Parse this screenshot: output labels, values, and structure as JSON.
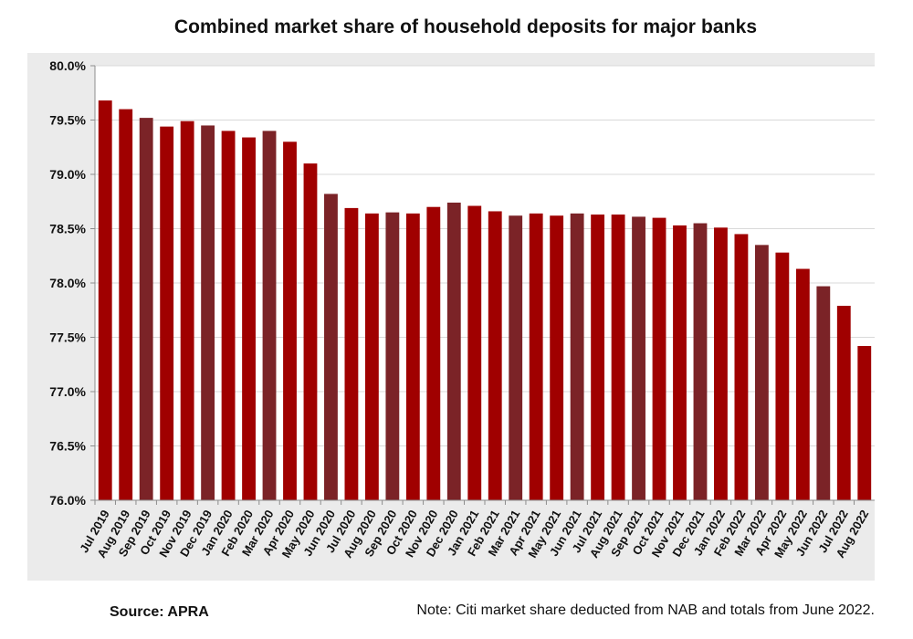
{
  "chart_data": {
    "type": "bar",
    "title": "Combined market share of household deposits for major banks",
    "xlabel": "",
    "ylabel": "",
    "ylim": [
      76.0,
      80.0
    ],
    "y_ticks": [
      "80.0%",
      "79.5%",
      "79.0%",
      "78.5%",
      "78.0%",
      "77.5%",
      "77.0%",
      "76.5%",
      "76.0%"
    ],
    "y_tick_values": [
      80.0,
      79.5,
      79.0,
      78.5,
      78.0,
      77.5,
      77.0,
      76.5,
      76.0
    ],
    "grid": "horizontal",
    "categories": [
      "Jul 2019",
      "Aug 2019",
      "Sep 2019",
      "Oct 2019",
      "Nov 2019",
      "Dec 2019",
      "Jan 2020",
      "Feb 2020",
      "Mar 2020",
      "Apr 2020",
      "May 2020",
      "Jun 2020",
      "Jul 2020",
      "Aug 2020",
      "Sep 2020",
      "Oct 2020",
      "Nov 2020",
      "Dec 2020",
      "Jan 2021",
      "Feb 2021",
      "Mar 2021",
      "Apr 2021",
      "May 2021",
      "Jun 2021",
      "Jul 2021",
      "Aug 2021",
      "Sep 2021",
      "Oct 2021",
      "Nov 2021",
      "Dec 2021",
      "Jan 2022",
      "Feb 2022",
      "Mar 2022",
      "Apr 2022",
      "May 2022",
      "Jun 2022",
      "Jul 2022",
      "Aug 2022"
    ],
    "values": [
      79.68,
      79.6,
      79.52,
      79.44,
      79.49,
      79.45,
      79.4,
      79.34,
      79.4,
      79.3,
      79.1,
      78.82,
      78.69,
      78.64,
      78.65,
      78.64,
      78.7,
      78.74,
      78.71,
      78.66,
      78.62,
      78.64,
      78.62,
      78.64,
      78.63,
      78.63,
      78.61,
      78.6,
      78.53,
      78.55,
      78.51,
      78.45,
      78.35,
      78.28,
      78.13,
      77.97,
      77.79,
      77.42
    ],
    "bar_colors": [
      "#a00000",
      "#a00000",
      "#7b2327",
      "#a00000",
      "#a00000",
      "#7b2327",
      "#a00000",
      "#a00000",
      "#7b2327",
      "#a00000",
      "#a00000",
      "#7b2327",
      "#a00000",
      "#a00000",
      "#7b2327",
      "#a00000",
      "#a00000",
      "#7b2327",
      "#a00000",
      "#a00000",
      "#7b2327",
      "#a00000",
      "#a00000",
      "#7b2327",
      "#a00000",
      "#a00000",
      "#7b2327",
      "#a00000",
      "#a00000",
      "#7b2327",
      "#a00000",
      "#a00000",
      "#7b2327",
      "#a00000",
      "#a00000",
      "#7b2327",
      "#a00000",
      "#a00000"
    ],
    "colors": {
      "primary_bar": "#a00000",
      "alternate_bar": "#7b2327",
      "panel_background": "#ebebeb",
      "plot_background": "#ffffff",
      "gridline": "#d9d9d9",
      "axis": "#8c8c8c",
      "text": "#111111"
    }
  },
  "footer": {
    "source": "Source: APRA",
    "note": "Note: Citi market share deducted from NAB and totals from June 2022."
  }
}
